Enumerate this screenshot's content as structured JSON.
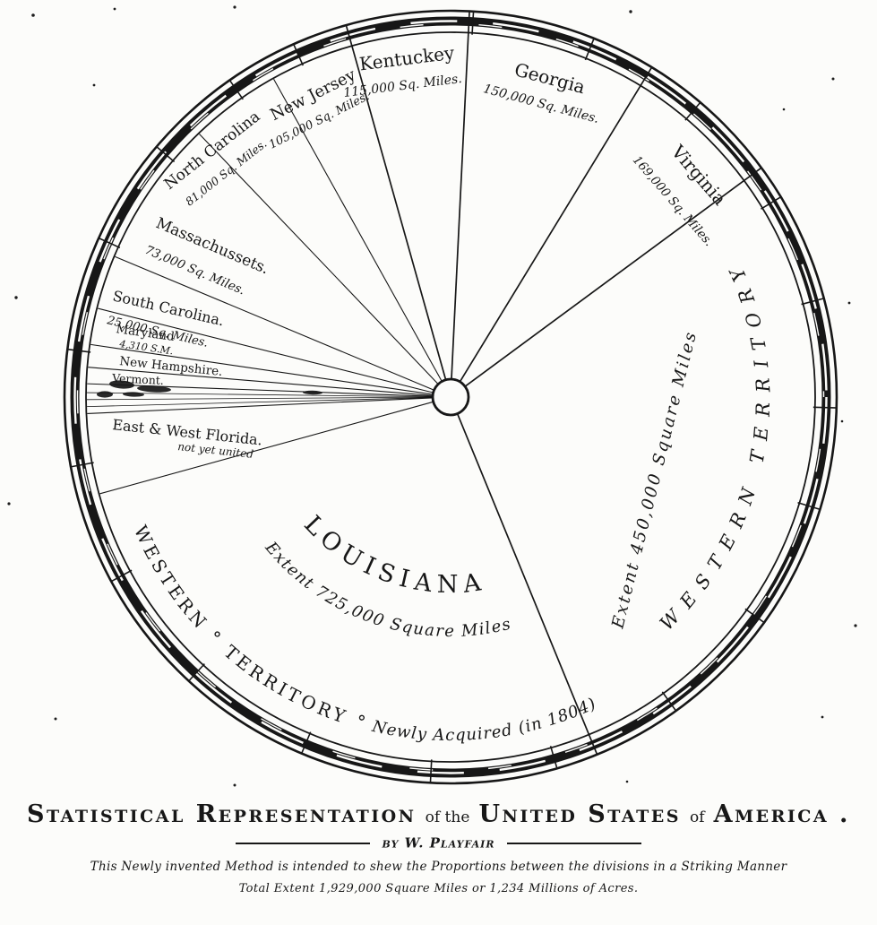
{
  "ink": "#171717",
  "paper": "#fcfcfa",
  "chart_data": {
    "type": "pie",
    "title": "Statistical Representation of the United States of America",
    "byline": "by W. Playfair",
    "note1": "This Newly invented Method is intended to shew the Proportions between the divisions in a Striking Manner",
    "note2": "Total Extent 1,929,000 Square Miles or 1,234 Millions of Acres.",
    "units": "Square Miles",
    "total_extent_sq_miles": 1929000,
    "total_extent_millions_of_acres": 1234,
    "legend_position": "labels-in-slices",
    "slices": [
      {
        "name": "Kentuckey",
        "value": 115000,
        "value_label": "115,000 Sq. Miles.",
        "start_deg": 344.3,
        "end_deg": 2.8,
        "edge": "full"
      },
      {
        "name": "Georgia",
        "value": 150000,
        "value_label": "150,000 Sq. Miles.",
        "start_deg": 2.8,
        "end_deg": 31.4,
        "edge": "full"
      },
      {
        "name": "Virginia",
        "value": 169000,
        "value_label": "169,000 Sq. Miles.",
        "start_deg": 31.4,
        "end_deg": 53.6,
        "edge": "full"
      },
      {
        "name": "Western Territory",
        "value": 450000,
        "value_label": "Extent 450,000 Square Miles",
        "start_deg": 53.6,
        "end_deg": 157.7,
        "edge": "full"
      },
      {
        "name": "Louisiana",
        "value": 725000,
        "value_label": "Extent 725,000 Square Miles",
        "start_deg": 157.7,
        "end_deg": 254.6,
        "edge": "full",
        "rim_note": "Western Territory ° Newly Acquired (in 1804)"
      },
      {
        "name": "East & West Florida",
        "value": null,
        "value_label": "not yet united",
        "start_deg": 254.6,
        "end_deg": 267.4,
        "edge": "inner"
      },
      {
        "name": "(illegible small states)",
        "value": null,
        "value_label": "",
        "start_deg": 267.4,
        "end_deg": 272.1,
        "edge": "inner"
      },
      {
        "name": "Vermont",
        "value": null,
        "value_label": "",
        "start_deg": 272.1,
        "end_deg": 274.7,
        "edge": "inner"
      },
      {
        "name": "New Hampshire",
        "value": null,
        "value_label": "",
        "start_deg": 274.7,
        "end_deg": 278.3,
        "edge": "inner"
      },
      {
        "name": "Maryland",
        "value": 4310,
        "value_label": "4,310 S.M.",
        "start_deg": 278.3,
        "end_deg": 284.1,
        "edge": "inner"
      },
      {
        "name": "South Carolina",
        "value": 25000,
        "value_label": "25,000 Sq. Miles.",
        "start_deg": 284.1,
        "end_deg": 292.7,
        "edge": "inner"
      },
      {
        "name": "Massachussets",
        "value": 73000,
        "value_label": "73,000 Sq. Miles.",
        "start_deg": 292.7,
        "end_deg": 316.3,
        "edge": "inner"
      },
      {
        "name": "North Carolina",
        "value": 81000,
        "value_label": "81,000 Sq. Miles.",
        "start_deg": 316.3,
        "end_deg": 330.9,
        "edge": "inner"
      },
      {
        "name": "New Jersey",
        "value": 105000,
        "value_label": "105,000 Sq. Miles.",
        "start_deg": 330.9,
        "end_deg": 344.3,
        "edge": "inner"
      }
    ],
    "sliver_line_angles": [
      268.5,
      269.6,
      270.7
    ],
    "tick_angles": [
      3.4,
      21.8,
      40.3,
      58.8,
      75.2,
      91.6,
      106.9,
      125.7,
      144.3,
      164,
      183,
      202.7,
      222.7,
      241.5,
      259.6,
      277.1,
      294.3,
      310.4,
      325.1,
      336
    ]
  },
  "labels": {
    "kentuckey_name": "Kentuckey",
    "kentuckey_value": "115,000 Sq. Miles.",
    "georgia_name": "Georgia",
    "georgia_value": "150,000 Sq. Miles.",
    "virginia_name": "Virginia",
    "virginia_value": "169,000 Sq. Miles.",
    "new_jersey_name": "New Jersey",
    "new_jersey_value": "105,000 Sq. Miles.",
    "north_carolina_name": "North Carolina",
    "north_carolina_value": "81,000 Sq. Miles.",
    "massachussets_name": "Massachussets.",
    "massachussets_value": "73,000 Sq. Miles.",
    "south_carolina_name": "South Carolina.",
    "south_carolina_value": "25,000 Sq. Miles.",
    "maryland_name": "Maryland",
    "maryland_value": "4,310 S.M.",
    "new_hampshire_name": "New Hampshire.",
    "vermont_name": "Vermont.",
    "florida_name": "East & West Florida.",
    "florida_note": "not yet united",
    "louisiana_name": "LOUISIANA",
    "louisiana_value": "Extent 725,000  Square Miles",
    "western_territory_value": "Extent 450,000 Square Miles",
    "western_territory_right_arc": "WESTERN TERRITORY",
    "bottom_arc_caps": "WESTERN ° TERRITORY °",
    "bottom_arc_italic": " Newly Acquired (in 1804)"
  },
  "titles": {
    "part1": "Statistical Representation",
    "part2": "of the",
    "part3": "United States",
    "part4": "of",
    "part5": "America ."
  }
}
